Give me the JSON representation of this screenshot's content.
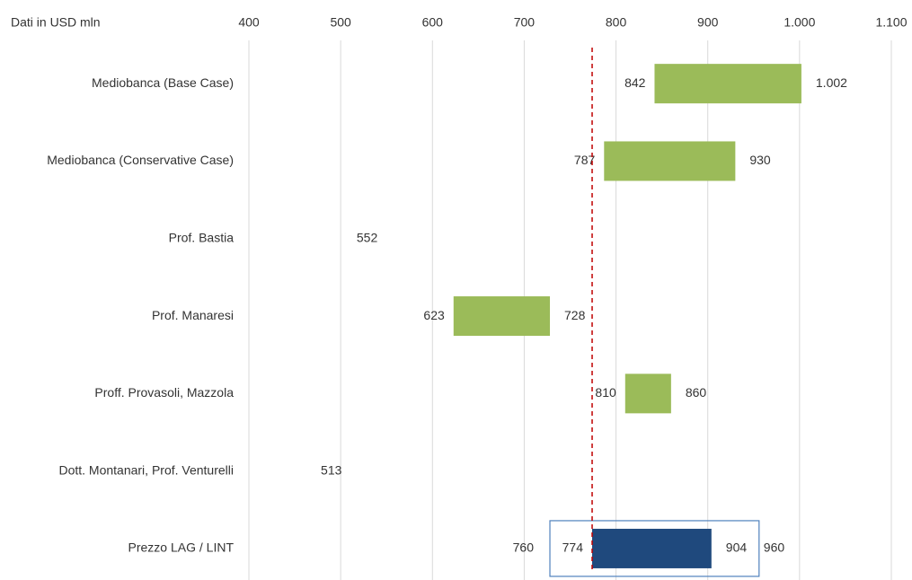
{
  "chart_data": {
    "type": "range_bar",
    "unit_label": "Dati in USD mln",
    "categories": [
      "Mediobanca (Base Case)",
      "Mediobanca (Conservative Case)",
      "Prof. Bastia",
      "Prof. Manaresi",
      "Proff. Provasoli, Mazzola",
      "Dott. Montanari, Prof. Venturelli",
      "Prezzo LAG / LINT"
    ],
    "low": [
      842,
      787,
      552,
      623,
      810,
      513,
      774
    ],
    "high": [
      1002,
      930,
      null,
      728,
      860,
      null,
      904
    ],
    "high_value_labels": [
      "1.002",
      "930",
      null,
      "728",
      "860",
      null,
      "904"
    ],
    "colors": [
      "#9bbb59",
      "#9bbb59",
      "#9bbb59",
      "#9bbb59",
      "#9bbb59",
      "#9bbb59",
      "#1f497d"
    ],
    "outer_range": {
      "low": 760,
      "high": 960,
      "box_color": "#4f81bd"
    },
    "reference_line": {
      "value": 774,
      "color": "#c00000"
    },
    "xlim": [
      400,
      1100
    ],
    "xticks": [
      400,
      500,
      600,
      700,
      800,
      900,
      {
        "value": 1000,
        "label": "1.000"
      },
      {
        "value": 1100,
        "label": "1.100"
      }
    ],
    "grid": true
  }
}
